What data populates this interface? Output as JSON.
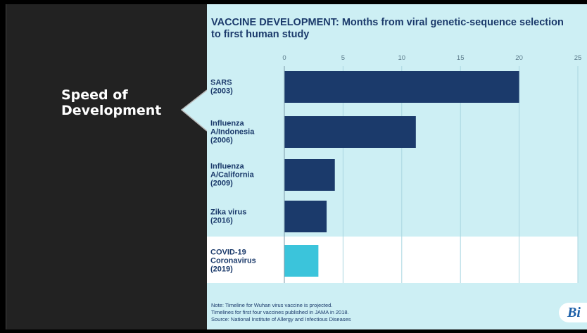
{
  "slide": {
    "heading_line1": "Speed of",
    "heading_line2": "Development"
  },
  "chart": {
    "title_line1": "VACCINE DEVELOPMENT: Months from viral genetic-sequence selection",
    "title_line2": "to first human study"
  },
  "footnote": {
    "line1": "Note: Timeline for Wuhan virus vaccine is projected.",
    "line2": "Timelines for first four vaccines published in JAMA in 2018.",
    "line3": "Source: National Institute of Allergy and Infectious Diseases"
  },
  "logo_text": "Bi",
  "colors": {
    "bar_primary": "#1b3a6b",
    "bar_highlight": "#3bc4db",
    "panel_bg": "#cdeff4",
    "highlight_row_bg": "#ffffff",
    "gridline": "#a9d6e0"
  },
  "chart_data": {
    "type": "bar",
    "orientation": "horizontal",
    "title": "VACCINE DEVELOPMENT: Months from viral genetic-sequence selection to first human study",
    "categories": [
      [
        "SARS",
        "(2003)"
      ],
      [
        "Influenza",
        "A/Indonesia",
        "(2006)"
      ],
      [
        "Influenza",
        "A/California",
        "(2009)"
      ],
      [
        "Zika virus",
        "(2016)"
      ],
      [
        "COVID-19",
        "Coronavirus",
        "(2019)"
      ]
    ],
    "values": [
      20,
      11.2,
      4.3,
      3.6,
      2.9
    ],
    "highlight_index": 4,
    "xlim": [
      0,
      25
    ],
    "xticks": [
      0,
      5,
      10,
      15,
      20,
      25
    ],
    "tick_position": "top",
    "grid": true
  }
}
